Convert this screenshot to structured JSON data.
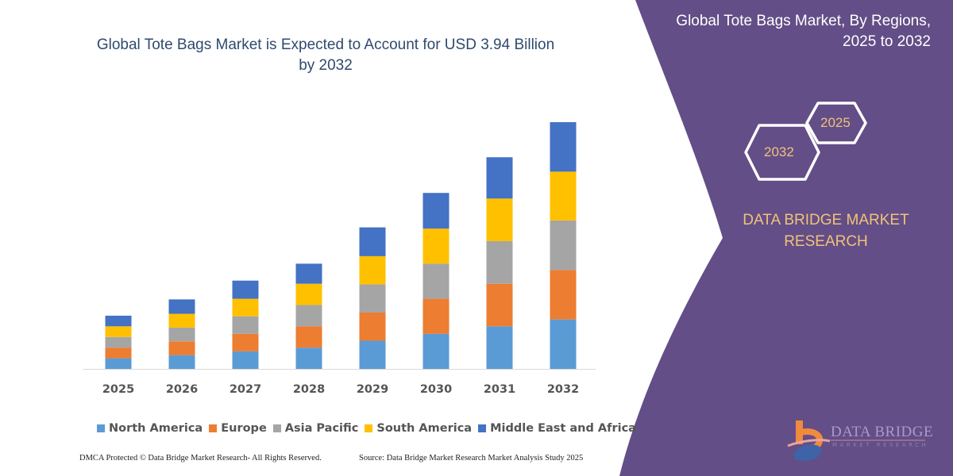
{
  "chart_data": {
    "type": "bar",
    "stacked": true,
    "title": "Global Tote Bags Market is Expected to Account for USD 3.94 Billion by 2032",
    "xlabel": "",
    "ylabel": "",
    "categories": [
      "2025",
      "2026",
      "2027",
      "2028",
      "2029",
      "2030",
      "2031",
      "2032"
    ],
    "series": [
      {
        "name": "North America",
        "color": "#5b9bd5",
        "values": [
          0.17,
          0.22,
          0.28,
          0.34,
          0.45,
          0.56,
          0.68,
          0.79
        ]
      },
      {
        "name": "Europe",
        "color": "#ed7d31",
        "values": [
          0.17,
          0.22,
          0.28,
          0.34,
          0.45,
          0.56,
          0.68,
          0.79
        ]
      },
      {
        "name": "Asia Pacific",
        "color": "#a5a5a5",
        "values": [
          0.17,
          0.22,
          0.28,
          0.34,
          0.45,
          0.56,
          0.68,
          0.79
        ]
      },
      {
        "name": "South America",
        "color": "#ffc000",
        "values": [
          0.17,
          0.22,
          0.28,
          0.34,
          0.45,
          0.56,
          0.68,
          0.78
        ]
      },
      {
        "name": "Middle East and Africa",
        "color": "#4472c4",
        "values": [
          0.17,
          0.23,
          0.29,
          0.32,
          0.46,
          0.57,
          0.66,
          0.79
        ]
      }
    ],
    "ylim": [
      0,
      3.94
    ],
    "grid": false,
    "legend_position": "bottom"
  },
  "side_panel": {
    "title_line1": "Global Tote Bags Market, By Regions,",
    "title_line2": "2025 to 2032",
    "hex_start": "2025",
    "hex_end": "2032",
    "brand_line1": "DATA BRIDGE MARKET",
    "brand_line2": "RESEARCH",
    "color": "#634e87",
    "logo_text": "DATA BRIDGE",
    "logo_sub": "MARKET RESEARCH"
  },
  "footer": {
    "left": "DMCA Protected © Data Bridge Market Research-  All Rights Reserved.",
    "right": "Source: Data Bridge Market Research  Market Analysis Study 2025"
  }
}
